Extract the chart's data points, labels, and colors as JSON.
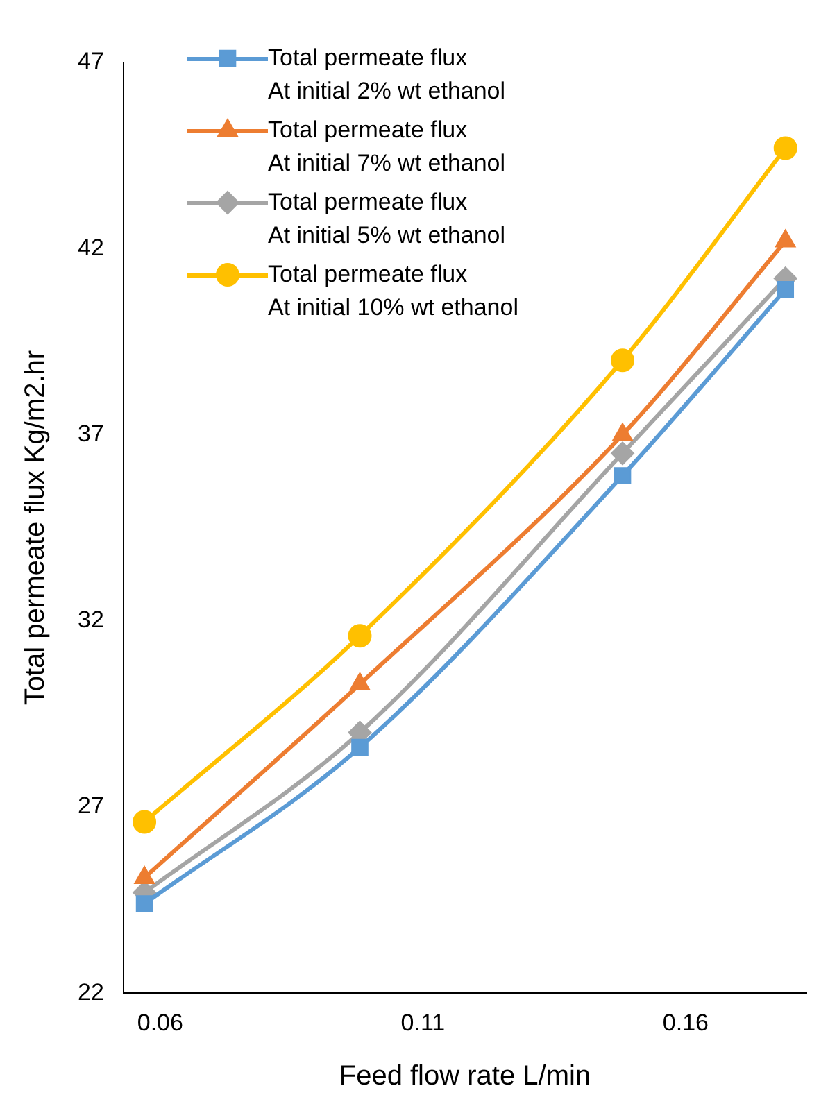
{
  "chart_data": {
    "type": "line",
    "xlabel": "Feed flow rate L/min",
    "ylabel": "Total permeate flux Kg/m2.hr",
    "xlim": [
      0.053,
      0.183
    ],
    "xticks": [
      0.06,
      0.11,
      0.16
    ],
    "ylim": [
      22,
      47
    ],
    "yticks": [
      22,
      27,
      32,
      37,
      42,
      47
    ],
    "grid": false,
    "legend": "top",
    "line_style": "solid",
    "x": [
      0.057,
      0.098,
      0.148,
      0.179
    ],
    "series": [
      {
        "name": "Total permeate flux\nAt initial 2% wt ethanol",
        "color": "#5b9bd5",
        "marker": "square",
        "values": [
          24.4,
          28.6,
          35.9,
          40.9
        ]
      },
      {
        "name": "Total permeate flux\nAt initial 7% wt ethanol",
        "color": "#ed7d31",
        "marker": "triangle",
        "values": [
          25.1,
          30.3,
          37.0,
          42.2
        ]
      },
      {
        "name": "Total permeate flux\nAt initial 5% wt ethanol",
        "color": "#a5a5a5",
        "marker": "diamond",
        "values": [
          24.7,
          29.0,
          36.5,
          41.2
        ]
      },
      {
        "name": "Total permeate flux\nAt initial 10% wt ethanol",
        "color": "#ffc000",
        "marker": "circle",
        "values": [
          26.6,
          31.6,
          39.0,
          44.7
        ]
      }
    ]
  }
}
